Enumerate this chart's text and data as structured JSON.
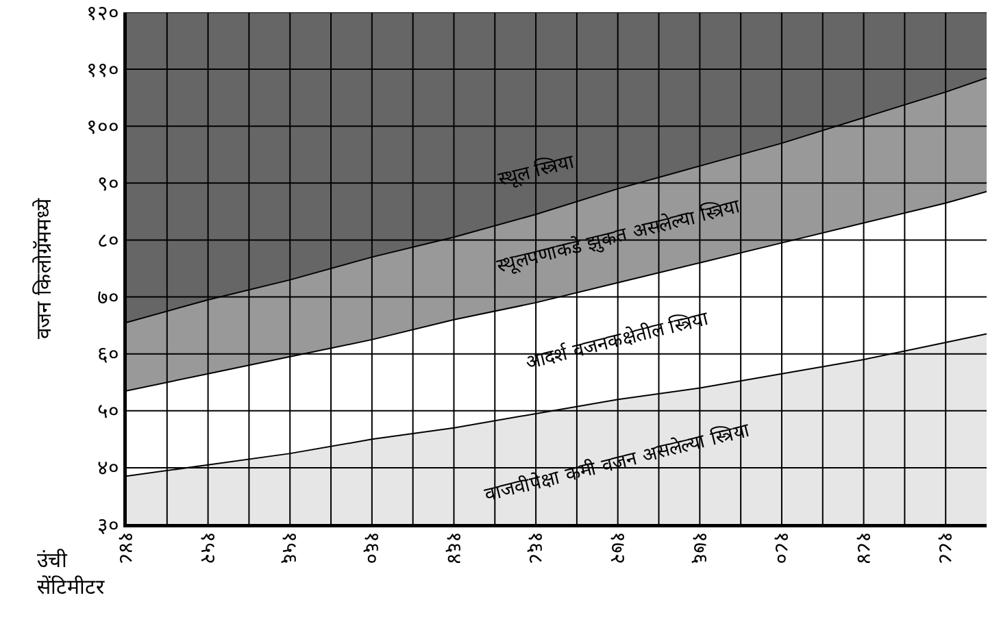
{
  "chart_data": {
    "type": "area",
    "xlabel": "उंची\nसेंटिमीटर",
    "ylabel": "वजन किलोग्रॅममध्ये",
    "x": [
      148,
      152,
      156,
      160,
      164,
      168,
      172,
      176,
      180,
      184,
      188,
      190
    ],
    "series": [
      {
        "name": "स्थूल स्त्रिया",
        "color": "#666666",
        "values": [
          120,
          120,
          120,
          120,
          120,
          120,
          120,
          120,
          120,
          120,
          120,
          120
        ]
      },
      {
        "name": "स्थूलपणाकडे झुकत असलेल्या स्त्रिया",
        "color": "#999999",
        "values": [
          65.5,
          69.5,
          73,
          77,
          80.5,
          84.5,
          89,
          93,
          97,
          101.5,
          106,
          108.5
        ]
      },
      {
        "name": "आदर्श वजनकक्षेतील स्त्रिया",
        "color": "#ffffff",
        "values": [
          53.5,
          56.5,
          59.5,
          62.5,
          66,
          69,
          72.5,
          76,
          79.5,
          83,
          86.5,
          88.5
        ]
      },
      {
        "name": "वाजवीपेक्षा कमी वजन असलेल्या स्त्रिया",
        "color": "#e6e6e6",
        "values": [
          38.5,
          40.5,
          42.5,
          45,
          47,
          49.5,
          52,
          54,
          56.5,
          59,
          62,
          63.5
        ]
      }
    ],
    "xlim": [
      148,
      190
    ],
    "ylim": [
      30,
      120
    ],
    "xticks": [
      {
        "value": 148,
        "label": "१४८"
      },
      {
        "value": 150,
        "label": null
      },
      {
        "value": 152,
        "label": "१५२"
      },
      {
        "value": 154,
        "label": null
      },
      {
        "value": 156,
        "label": "१५६"
      },
      {
        "value": 158,
        "label": null
      },
      {
        "value": 160,
        "label": "१६०"
      },
      {
        "value": 162,
        "label": null
      },
      {
        "value": 164,
        "label": "१६४"
      },
      {
        "value": 166,
        "label": null
      },
      {
        "value": 168,
        "label": "१६८"
      },
      {
        "value": 170,
        "label": null
      },
      {
        "value": 172,
        "label": "१७२"
      },
      {
        "value": 174,
        "label": null
      },
      {
        "value": 176,
        "label": "१७६"
      },
      {
        "value": 178,
        "label": null
      },
      {
        "value": 180,
        "label": "१८०"
      },
      {
        "value": 182,
        "label": null
      },
      {
        "value": 184,
        "label": "१८४"
      },
      {
        "value": 186,
        "label": null
      },
      {
        "value": 188,
        "label": "१८८"
      }
    ],
    "yticks": [
      {
        "value": 30,
        "label": "३०"
      },
      {
        "value": 40,
        "label": "४०"
      },
      {
        "value": 50,
        "label": "५०"
      },
      {
        "value": 60,
        "label": "६०"
      },
      {
        "value": 70,
        "label": "७०"
      },
      {
        "value": 80,
        "label": "८०"
      },
      {
        "value": 90,
        "label": "९०"
      },
      {
        "value": 100,
        "label": "१००"
      },
      {
        "value": 110,
        "label": "११०"
      },
      {
        "value": 120,
        "label": "१२०"
      }
    ],
    "grid": true,
    "legend": false,
    "marker": "none",
    "line_style": "solid"
  }
}
